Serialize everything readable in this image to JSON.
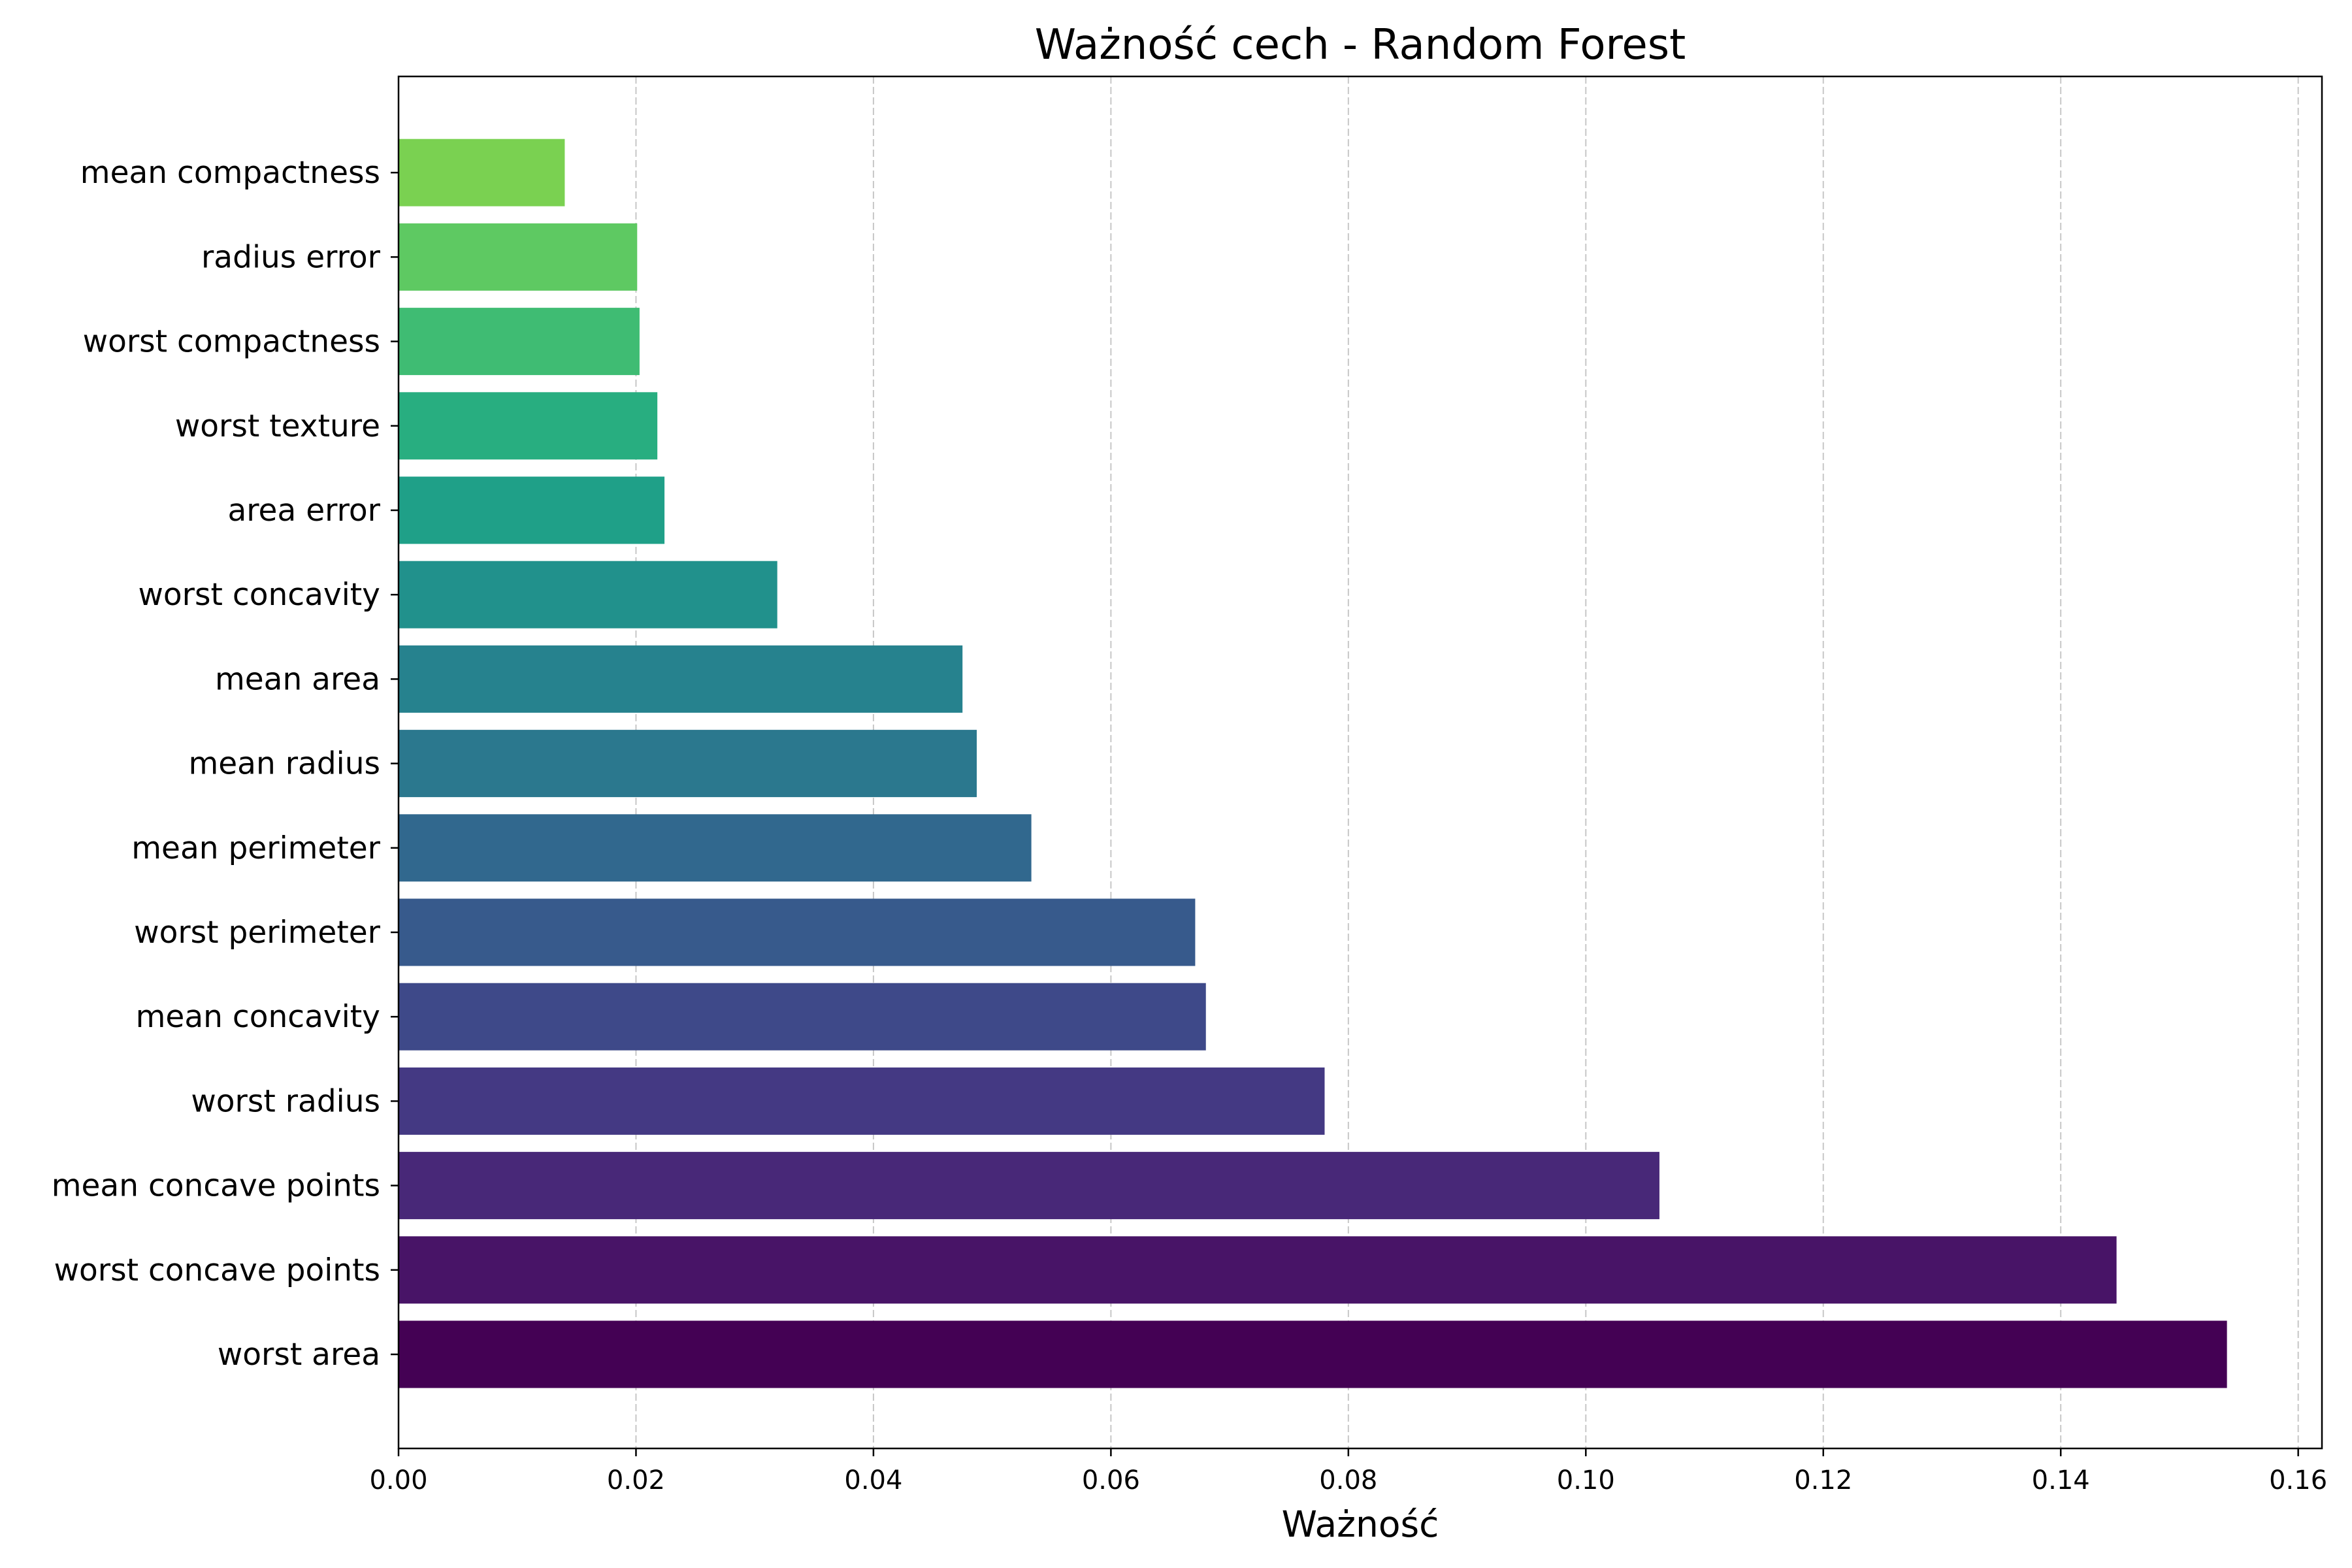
{
  "chart_data": {
    "type": "bar",
    "orientation": "horizontal",
    "title": "Ważność cech - Random Forest",
    "xlabel": "Ważność",
    "ylabel": "",
    "xlim": [
      0,
      0.162
    ],
    "x_ticks": [
      0.0,
      0.02,
      0.04,
      0.06,
      0.08,
      0.1,
      0.12,
      0.14,
      0.16
    ],
    "x_tick_labels": [
      "0.00",
      "0.02",
      "0.04",
      "0.06",
      "0.08",
      "0.10",
      "0.12",
      "0.14",
      "0.16"
    ],
    "grid": "x-dashed",
    "categories": [
      "worst area",
      "worst concave points",
      "mean concave points",
      "worst radius",
      "mean concavity",
      "worst perimeter",
      "mean perimeter",
      "mean radius",
      "mean area",
      "worst concavity",
      "area error",
      "worst texture",
      "worst compactness",
      "radius error",
      "mean compactness"
    ],
    "values": [
      0.154,
      0.1447,
      0.1062,
      0.078,
      0.068,
      0.0671,
      0.0533,
      0.0487,
      0.0475,
      0.0319,
      0.0224,
      0.0218,
      0.0203,
      0.0201,
      0.014
    ],
    "colors": [
      "#440154",
      "#481467",
      "#482878",
      "#443983",
      "#3e4989",
      "#375a8c",
      "#31688e",
      "#2b788e",
      "#26828e",
      "#21918c",
      "#1fa088",
      "#28ae80",
      "#3fbc73",
      "#5ec962",
      "#7ad151"
    ]
  }
}
